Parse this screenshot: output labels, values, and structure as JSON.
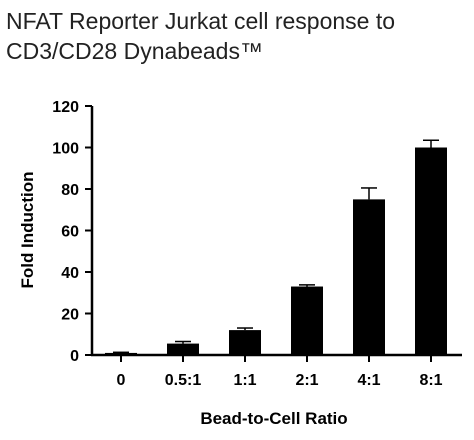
{
  "chart_data": {
    "type": "bar",
    "title_lines": [
      "NFAT Reporter Jurkat cell response to",
      "CD3/CD28 Dynabeads™"
    ],
    "xlabel": "Bead-to-Cell Ratio",
    "ylabel": "Fold Induction",
    "categories": [
      "0",
      "0.5:1",
      "1:1",
      "2:1",
      "4:1",
      "8:1"
    ],
    "values": [
      1,
      5.5,
      12,
      33,
      75,
      100
    ],
    "errors": [
      0.3,
      1,
      1,
      0.8,
      5.5,
      3.5
    ],
    "ylim": [
      0,
      120
    ],
    "yticks": [
      "0",
      "20",
      "40",
      "60",
      "80",
      "100",
      "120"
    ],
    "bar_color": "#000000",
    "grid": false,
    "legend": "none"
  }
}
